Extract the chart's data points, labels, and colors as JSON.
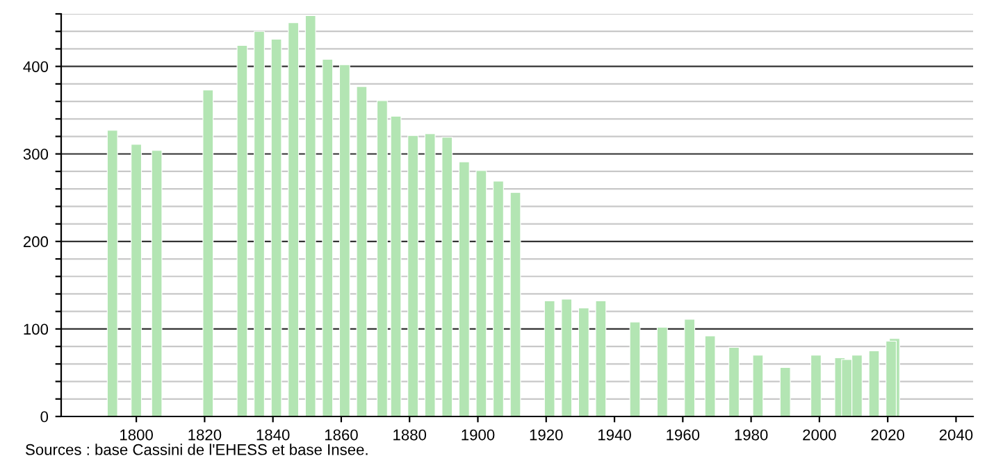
{
  "chart_data": {
    "type": "bar",
    "x": [
      1793,
      1800,
      1806,
      1821,
      1831,
      1836,
      1841,
      1846,
      1851,
      1856,
      1861,
      1866,
      1872,
      1876,
      1881,
      1886,
      1891,
      1896,
      1901,
      1906,
      1911,
      1921,
      1926,
      1931,
      1936,
      1946,
      1954,
      1962,
      1968,
      1975,
      1982,
      1990,
      1999,
      2006,
      2008,
      2011,
      2016,
      2021,
      2022
    ],
    "values": [
      327,
      311,
      304,
      373,
      424,
      440,
      431,
      450,
      458,
      408,
      402,
      377,
      361,
      343,
      321,
      323,
      319,
      291,
      281,
      269,
      256,
      132,
      134,
      124,
      132,
      108,
      102,
      111,
      92,
      79,
      70,
      56,
      70,
      67,
      65,
      70,
      75,
      86,
      89
    ],
    "color": "#b3e5b3",
    "xlim": [
      1778,
      2045
    ],
    "xticks": [
      1800,
      1820,
      1840,
      1860,
      1880,
      1900,
      1920,
      1940,
      1960,
      1980,
      2000,
      2020,
      2040
    ],
    "ylim": [
      0,
      460
    ],
    "yticks": [
      0,
      {
        "value": 20,
        "label": null
      },
      {
        "value": 40,
        "label": null
      },
      {
        "value": 60,
        "label": null
      },
      {
        "value": 80,
        "label": null
      },
      100,
      {
        "value": 120,
        "label": null
      },
      {
        "value": 140,
        "label": null
      },
      {
        "value": 160,
        "label": null
      },
      {
        "value": 180,
        "label": null
      },
      200,
      {
        "value": 220,
        "label": null
      },
      {
        "value": 240,
        "label": null
      },
      {
        "value": 260,
        "label": null
      },
      {
        "value": 280,
        "label": null
      },
      300,
      {
        "value": 320,
        "label": null
      },
      {
        "value": 340,
        "label": null
      },
      {
        "value": 360,
        "label": null
      },
      {
        "value": 380,
        "label": null
      },
      400,
      {
        "value": 420,
        "label": null
      },
      {
        "value": 440,
        "label": null
      },
      {
        "value": 460,
        "label": null
      }
    ],
    "grid": "y",
    "annotations": [
      "Sources : base Cassini de l'EHESS et base Insee."
    ]
  }
}
